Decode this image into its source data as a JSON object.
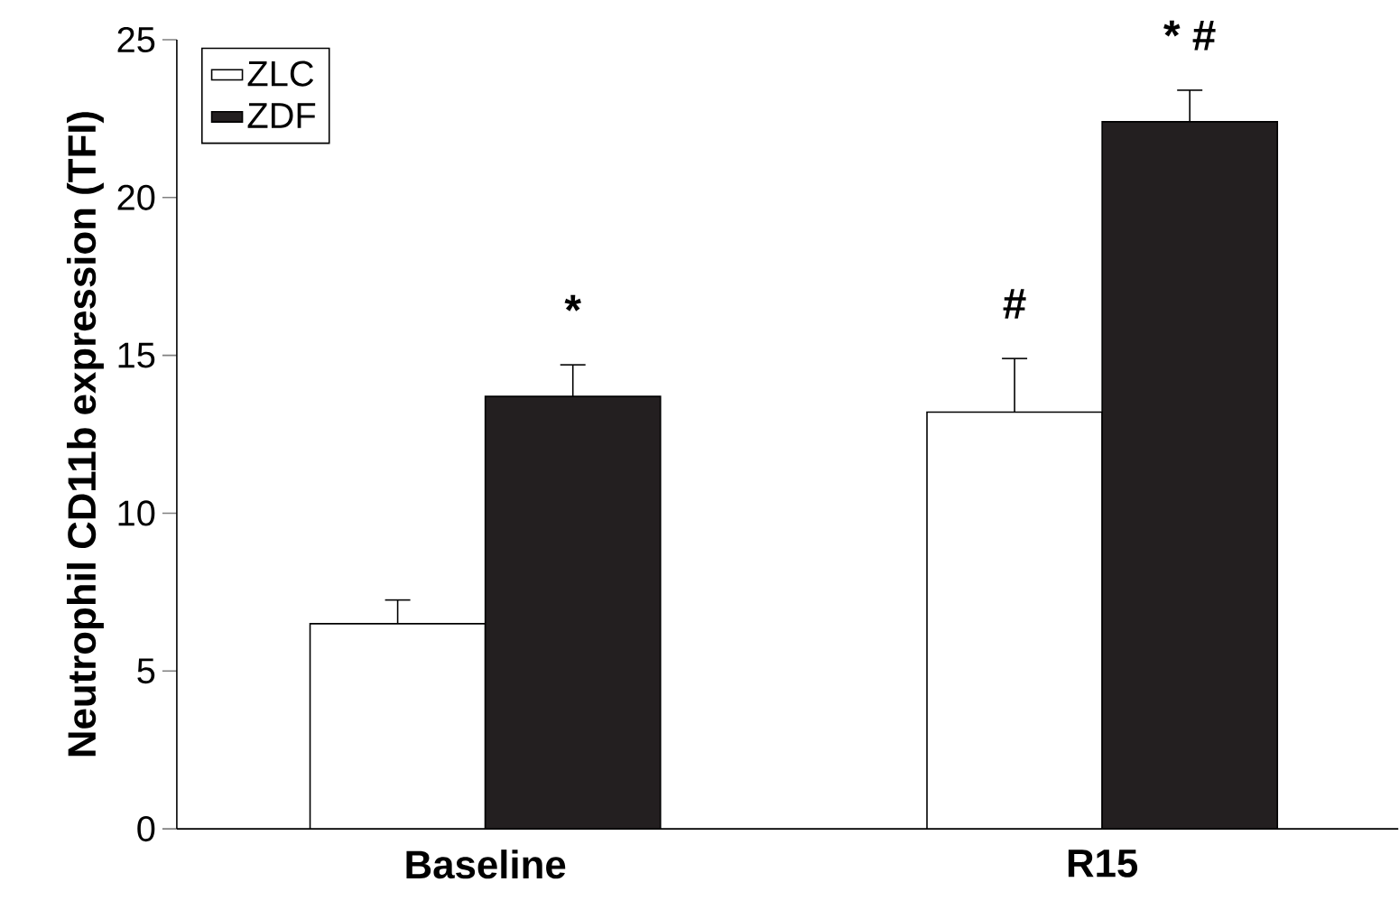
{
  "chart_data": {
    "type": "bar",
    "ylabel": "Neutrophil CD11b expression (TFI)",
    "categories": [
      "Baseline",
      "R15"
    ],
    "series": [
      {
        "name": "ZLC",
        "color": "#ffffff",
        "values": [
          6.5,
          13.2
        ],
        "errors": [
          0.75,
          1.7
        ]
      },
      {
        "name": "ZDF",
        "color": "#231f20",
        "values": [
          13.7,
          22.4
        ],
        "errors": [
          1.0,
          1.0
        ]
      }
    ],
    "ylim": [
      0,
      25
    ],
    "yticks": [
      0,
      5,
      10,
      15,
      20,
      25
    ],
    "legend": "top left",
    "annotations": [
      "*",
      {
        "text": "#",
        "x": "R15",
        "y": 14.9
      },
      "* #"
    ]
  }
}
